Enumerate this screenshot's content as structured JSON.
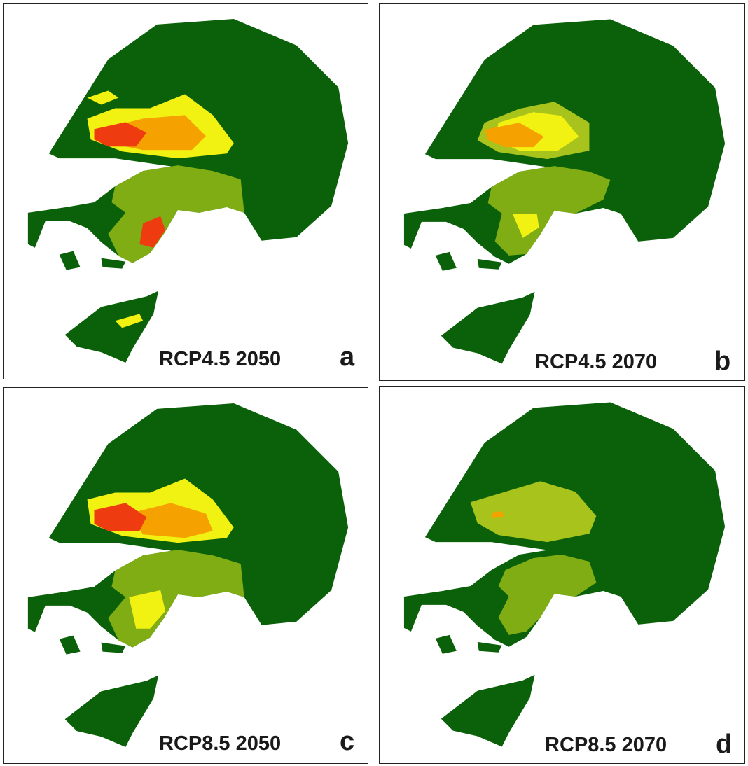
{
  "colors": {
    "dark_green": "#0b6109",
    "olive": "#7fad13",
    "light_olive": "#a8c41c",
    "yellow": "#f2f212",
    "orange": "#f5a100",
    "red": "#ee3b0f"
  },
  "panels": [
    {
      "id": "a",
      "label": "RCP4.5 2050",
      "letter": "a"
    },
    {
      "id": "b",
      "label": "RCP4.5 2070",
      "letter": "b"
    },
    {
      "id": "c",
      "label": "RCP8.5 2050",
      "letter": "c"
    },
    {
      "id": "d",
      "label": "RCP8.5 2070",
      "letter": "d"
    }
  ]
}
